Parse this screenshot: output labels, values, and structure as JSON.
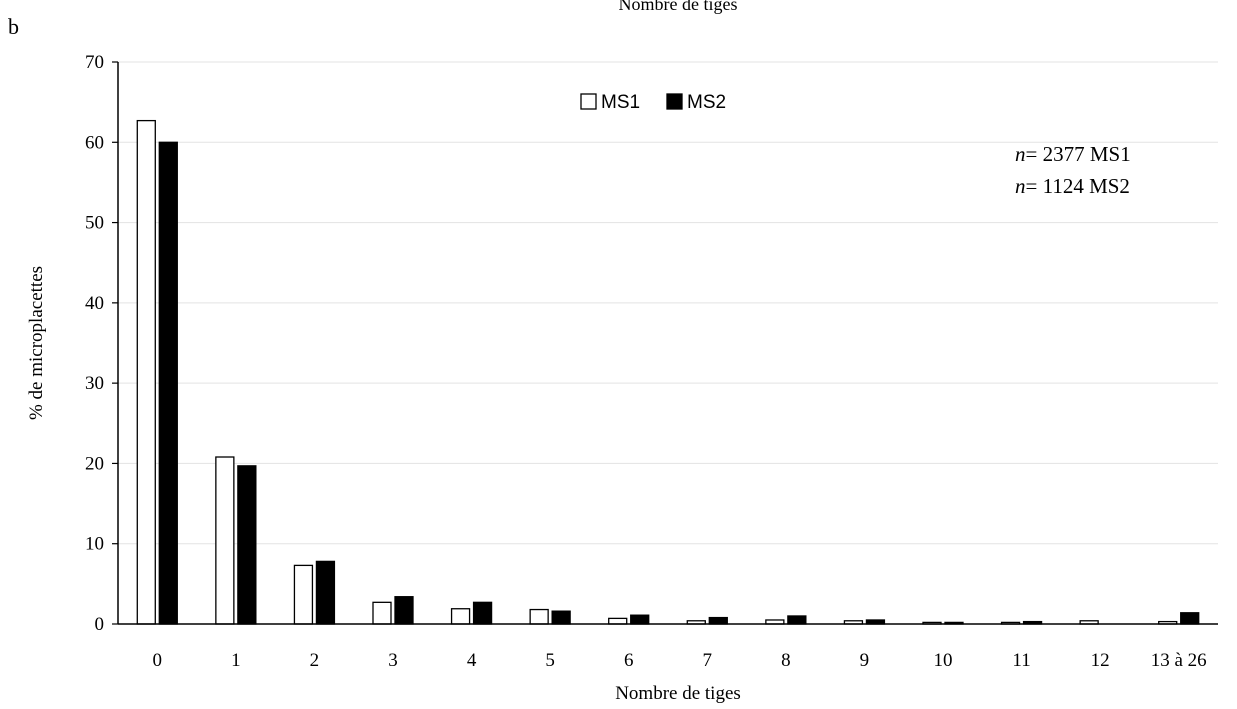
{
  "panel_label": "b",
  "chart_data": {
    "type": "bar",
    "title": "Nombre de tiges",
    "xlabel": "Nombre de tiges",
    "ylabel": "% de microplacettes",
    "categories": [
      "0",
      "1",
      "2",
      "3",
      "4",
      "5",
      "6",
      "7",
      "8",
      "9",
      "10",
      "11",
      "12",
      "13 à 26"
    ],
    "series": [
      {
        "name": "MS1",
        "fill": "#ffffff",
        "stroke": "#000000",
        "values": [
          62.7,
          20.8,
          7.3,
          2.7,
          1.9,
          1.8,
          0.7,
          0.4,
          0.5,
          0.4,
          0.2,
          0.2,
          0.4,
          0.3
        ]
      },
      {
        "name": "MS2",
        "fill": "#000000",
        "stroke": "#000000",
        "values": [
          60.0,
          19.7,
          7.8,
          3.4,
          2.7,
          1.6,
          1.1,
          0.8,
          1.0,
          0.5,
          0.2,
          0.3,
          0.0,
          1.4
        ]
      }
    ],
    "ylim": [
      0,
      70
    ],
    "yticks": [
      0,
      10,
      20,
      30,
      40,
      50,
      60,
      70
    ],
    "grid": true,
    "legend_position": "top-center",
    "annotations": [
      {
        "prefix": "n",
        "text": "= 2377 MS1"
      },
      {
        "prefix": "n",
        "text": "= 1124 MS2"
      }
    ]
  }
}
